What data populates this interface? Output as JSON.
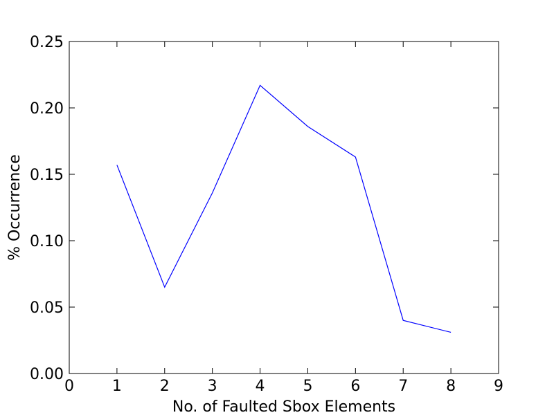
{
  "chart_data": {
    "type": "line",
    "title": "",
    "xlabel": "No. of Faulted Sbox Elements",
    "ylabel": "% Occurrence",
    "xlim": [
      0,
      9
    ],
    "ylim": [
      0,
      0.25
    ],
    "x_ticks": [
      0,
      1,
      2,
      3,
      4,
      5,
      6,
      7,
      8,
      9
    ],
    "x_tick_labels": [
      "0",
      "1",
      "2",
      "3",
      "4",
      "5",
      "6",
      "7",
      "8",
      "9"
    ],
    "y_ticks": [
      0,
      0.05,
      0.1,
      0.15,
      0.2,
      0.25
    ],
    "y_tick_labels": [
      "0.00",
      "0.05",
      "0.10",
      "0.15",
      "0.20",
      "0.25"
    ],
    "grid": false,
    "legend": "none",
    "series": [
      {
        "color": "#0000ff",
        "x": [
          1,
          2,
          3,
          4,
          5,
          6,
          7,
          8
        ],
        "y": [
          0.157,
          0.065,
          0.136,
          0.217,
          0.186,
          0.163,
          0.04,
          0.031
        ]
      }
    ]
  }
}
